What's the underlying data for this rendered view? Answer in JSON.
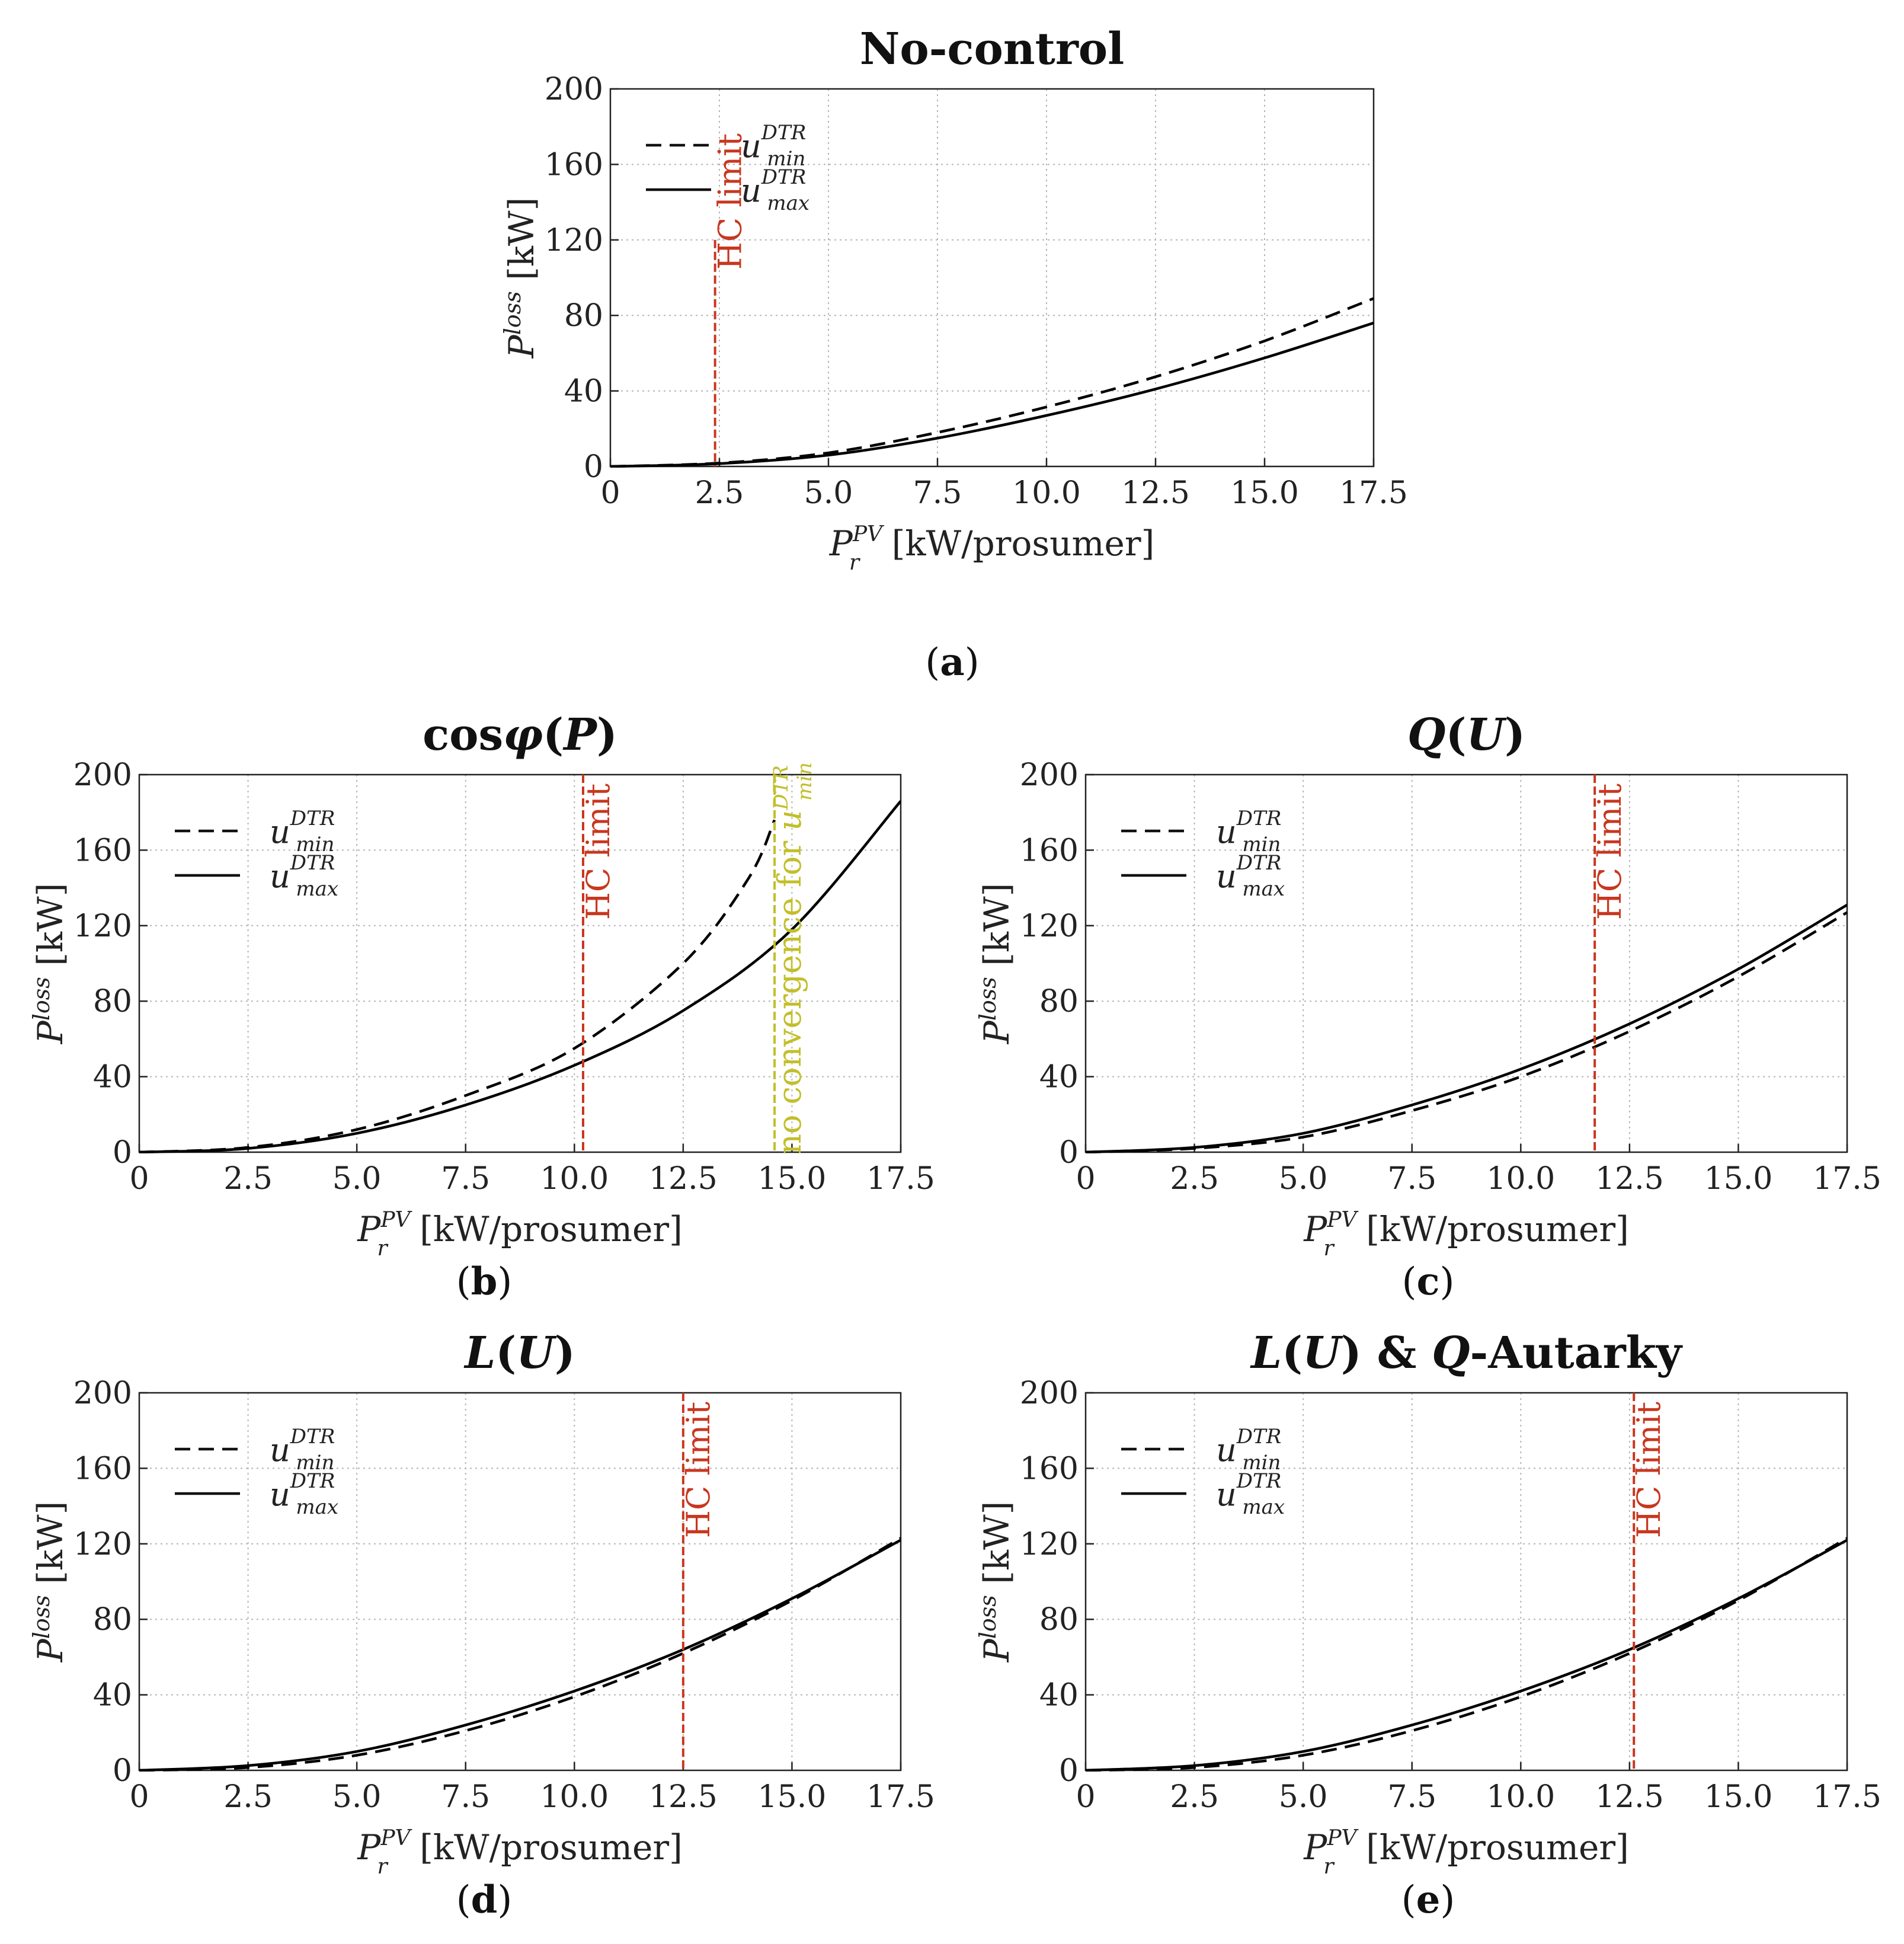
{
  "figure": {
    "common": {
      "ylabel_main": "P",
      "ylabel_sup": "loss",
      "ylabel_unit": "[kW]",
      "xlabel_main": "P",
      "xlabel_sup": "PV",
      "xlabel_sub": "r",
      "xlabel_unit": "[kW/prosumer]",
      "legend": [
        {
          "base": "u",
          "sup": "DTR",
          "sub": "min",
          "style": "dashed"
        },
        {
          "base": "u",
          "sup": "DTR",
          "sub": "max",
          "style": "solid"
        }
      ],
      "x_ticks": [
        "0",
        "2.5",
        "5.0",
        "7.5",
        "10.0",
        "12.5",
        "15.0",
        "17.5"
      ],
      "y_ticks": [
        "0",
        "40",
        "80",
        "120",
        "160",
        "200"
      ]
    },
    "colors": {
      "hc_limit": "#c8371f",
      "no_convergence": "#c2bf2a",
      "curve": "#000000",
      "grid": "#b5b5b5"
    }
  },
  "chart_data": [
    {
      "id": "a",
      "type": "line",
      "title": "No-control",
      "caption": "(a)",
      "xlim": [
        0,
        17.5
      ],
      "ylim": [
        0,
        200
      ],
      "series": [
        {
          "name": "u_min^DTR",
          "style": "dashed",
          "x": [
            0,
            2.5,
            5,
            7.5,
            10,
            12.5,
            15,
            17.5
          ],
          "y": [
            0,
            1.8,
            7.2,
            18,
            31.5,
            47.5,
            66.5,
            89
          ]
        },
        {
          "name": "u_max^DTR",
          "style": "solid",
          "x": [
            0,
            2.5,
            5,
            7.5,
            10,
            12.5,
            15,
            17.5
          ],
          "y": [
            0,
            1.5,
            6,
            15,
            27,
            41,
            57.5,
            76
          ]
        }
      ],
      "annotations": [
        {
          "text": "HC limit",
          "x": 2.4,
          "color": "#c8371f"
        }
      ]
    },
    {
      "id": "b",
      "type": "line",
      "title": "cosφ(P)",
      "caption": "(b)",
      "xlim": [
        0,
        17.5
      ],
      "ylim": [
        0,
        200
      ],
      "series": [
        {
          "name": "u_min^DTR",
          "style": "dashed",
          "x": [
            0,
            2.5,
            5,
            7.5,
            10,
            12.5,
            14,
            14.6
          ],
          "y": [
            0,
            2.5,
            12,
            30,
            55,
            100,
            145,
            176
          ]
        },
        {
          "name": "u_max^DTR",
          "style": "solid",
          "x": [
            0,
            2.5,
            5,
            7.5,
            10,
            12.5,
            15,
            17.5
          ],
          "y": [
            0,
            2,
            10,
            25,
            46,
            75,
            118,
            186
          ]
        }
      ],
      "annotations": [
        {
          "text": "HC limit",
          "x": 10.2,
          "color": "#c8371f"
        },
        {
          "text": "no convergence for",
          "math": "u",
          "math_sup": "DTR",
          "math_sub": "min",
          "x": 14.6,
          "color": "#c2bf2a"
        }
      ]
    },
    {
      "id": "c",
      "type": "line",
      "title": "Q(U)",
      "caption": "(c)",
      "xlim": [
        0,
        17.5
      ],
      "ylim": [
        0,
        200
      ],
      "series": [
        {
          "name": "u_min^DTR",
          "style": "dashed",
          "x": [
            0,
            2.5,
            5,
            7.5,
            10,
            12.5,
            15,
            17.5
          ],
          "y": [
            0,
            2,
            8,
            22,
            40,
            64,
            93,
            127
          ]
        },
        {
          "name": "u_max^DTR",
          "style": "solid",
          "x": [
            0,
            2.5,
            5,
            7.5,
            10,
            12.5,
            15,
            17.5
          ],
          "y": [
            0,
            2.5,
            10,
            25,
            44,
            68,
            97,
            131
          ]
        }
      ],
      "annotations": [
        {
          "text": "HC limit",
          "x": 11.7,
          "color": "#c8371f"
        }
      ]
    },
    {
      "id": "d",
      "type": "line",
      "title": "L(U)",
      "caption": "(d)",
      "xlim": [
        0,
        17.5
      ],
      "ylim": [
        0,
        200
      ],
      "series": [
        {
          "name": "u_min^DTR",
          "style": "dashed",
          "x": [
            0,
            2.5,
            5,
            7.5,
            10,
            12.5,
            15,
            17.5
          ],
          "y": [
            0,
            1.5,
            8,
            21,
            39,
            62,
            90,
            123
          ]
        },
        {
          "name": "u_max^DTR",
          "style": "solid",
          "x": [
            0,
            2.5,
            5,
            7.5,
            10,
            12.5,
            15,
            17.5
          ],
          "y": [
            0,
            2.5,
            10,
            24,
            42,
            64,
            91,
            122
          ]
        }
      ],
      "annotations": [
        {
          "text": "HC limit",
          "x": 12.5,
          "color": "#c8371f"
        }
      ]
    },
    {
      "id": "e",
      "type": "line",
      "title": "L(U) & Q-Autarky",
      "caption": "(e)",
      "xlim": [
        0,
        17.5
      ],
      "ylim": [
        0,
        200
      ],
      "series": [
        {
          "name": "u_min^DTR",
          "style": "dashed",
          "x": [
            0,
            2.5,
            5,
            7.5,
            10,
            12.5,
            15,
            17.5
          ],
          "y": [
            0,
            1.5,
            8,
            21,
            39,
            62,
            90,
            123
          ]
        },
        {
          "name": "u_max^DTR",
          "style": "solid",
          "x": [
            0,
            2.5,
            5,
            7.5,
            10,
            12.5,
            15,
            17.5
          ],
          "y": [
            0,
            2.5,
            10,
            24,
            42,
            64,
            91,
            122
          ]
        }
      ],
      "annotations": [
        {
          "text": "HC limit",
          "x": 12.6,
          "color": "#c8371f"
        }
      ]
    }
  ]
}
